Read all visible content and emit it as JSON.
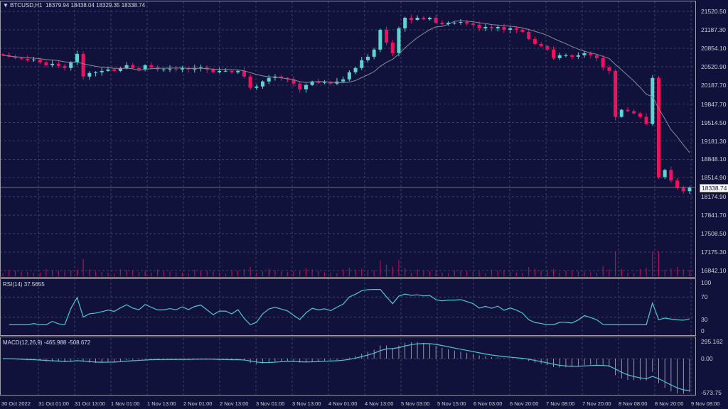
{
  "header": {
    "symbol": "BTCUSD,H1",
    "ohlc": "18379.94 18438.04 18329.35 18338.74",
    "icon": "triangle-down-icon"
  },
  "current_price": "18338.74",
  "rsi_label": "RSI(14) 37.5655",
  "macd_label": "MACD(12,26,9) -465.988 -508.672",
  "colors": {
    "background": "#10123c",
    "bull": "#5fd3d0",
    "bear": "#f0105f",
    "grid": "#4a5070",
    "ma": "#8a8a9a",
    "indicator": "#4fc6d0"
  },
  "chart_data": {
    "type": "candlestick",
    "price_axis": [
      "21520.50",
      "21187.30",
      "20854.10",
      "20520.90",
      "20187.70",
      "19847.70",
      "19514.50",
      "19181.30",
      "18848.10",
      "18514.90",
      "18174.90",
      "17841.70",
      "17508.50",
      "17175.30",
      "16842.10"
    ],
    "ylim": [
      16842.1,
      21520.5
    ],
    "time_axis": [
      "30 Oct 2022",
      "31 Oct 01:00",
      "31 Oct 13:00",
      "1 Nov 01:00",
      "1 Nov 13:00",
      "2 Nov 01:00",
      "2 Nov 13:00",
      "3 Nov 01:00",
      "3 Nov 13:00",
      "4 Nov 01:00",
      "4 Nov 13:00",
      "5 Nov 03:00",
      "5 Nov 15:00",
      "6 Nov 03:00",
      "6 Nov 20:00",
      "7 Nov 08:00",
      "7 Nov 20:00",
      "8 Nov 08:00",
      "8 Nov 20:00",
      "9 Nov 08:00"
    ],
    "closes": [
      20728,
      20702,
      20677,
      20664,
      20638,
      20651,
      20600,
      20549,
      20574,
      20536,
      20498,
      20600,
      20753,
      20344,
      20408,
      20421,
      20446,
      20472,
      20446,
      20498,
      20549,
      20498,
      20472,
      20549,
      20510,
      20472,
      20472,
      20485,
      20472,
      20498,
      20472,
      20498,
      20510,
      20472,
      20421,
      20446,
      20446,
      20421,
      20446,
      20344,
      20140,
      20165,
      20255,
      20319,
      20344,
      20319,
      20293,
      20216,
      20114,
      20191,
      20255,
      20229,
      20242,
      20216,
      20255,
      20293,
      20421,
      20498,
      20638,
      20702,
      20830,
      21188,
      20958,
      20766,
      21213,
      21405,
      21367,
      21405,
      21379,
      21405,
      21316,
      21290,
      21316,
      21316,
      21328,
      21303,
      21277,
      21213,
      21239,
      21213,
      21239,
      21188,
      21213,
      21188,
      21149,
      21022,
      20932,
      20894,
      20830,
      20677,
      20728,
      20728,
      20702,
      20728,
      20766,
      20728,
      20677,
      20510,
      20446,
      19616,
      19744,
      19718,
      19680,
      19616,
      19488,
      20319,
      18530,
      18657,
      18466,
      18338,
      18274,
      18338.74
    ],
    "rsi_axis": [
      "100",
      "70",
      "30",
      "0"
    ],
    "macd_axis": [
      "295.162",
      "0.00",
      "-573.75"
    ],
    "grid": true
  }
}
